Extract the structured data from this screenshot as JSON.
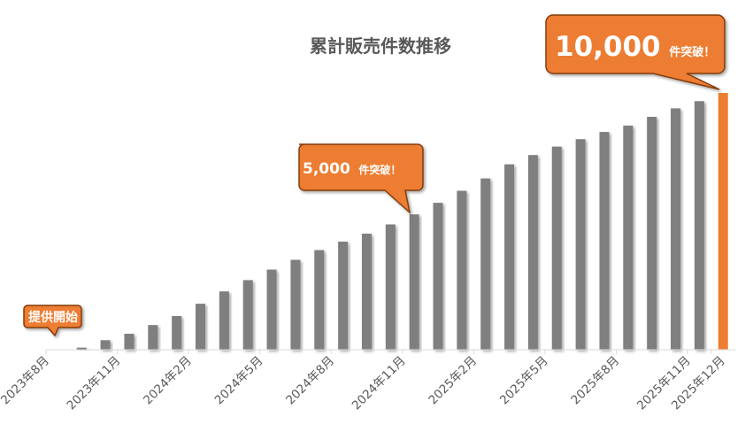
{
  "chart_data": {
    "type": "bar",
    "title": "累計販売件数推移",
    "xlabel": "",
    "ylabel": "",
    "ylim": [
      0,
      10000
    ],
    "grid": false,
    "categories": [
      "2023年8月",
      "2023年9月",
      "2023年10月",
      "2023年11月",
      "2023年12月",
      "2024年1月",
      "2024年2月",
      "2024年3月",
      "2024年4月",
      "2024年5月",
      "2024年6月",
      "2024年7月",
      "2024年8月",
      "2024年9月",
      "2024年10月",
      "2024年11月",
      "2024年12月",
      "2025年1月",
      "2025年2月",
      "2025年3月",
      "2025年4月",
      "2025年5月",
      "2025年6月",
      "2025年7月",
      "2025年8月",
      "2025年9月",
      "2025年10月",
      "2025年11月",
      "2025年12月"
    ],
    "tick_labels": [
      "2023年8月",
      "2023年11月",
      "2024年2月",
      "2024年5月",
      "2024年8月",
      "2024年11月",
      "2025年2月",
      "2025年5月",
      "2025年8月",
      "2025年11月",
      "2025年12月"
    ],
    "values": [
      0,
      80,
      370,
      620,
      960,
      1310,
      1790,
      2270,
      2710,
      3120,
      3500,
      3880,
      4210,
      4520,
      4880,
      5270,
      5720,
      6190,
      6670,
      7220,
      7580,
      7910,
      8200,
      8480,
      8730,
      9070,
      9400,
      9680,
      10000
    ],
    "bar_color": "#7f7f7f",
    "highlight_color": "#ed7d31",
    "highlight_index": 28,
    "annotations": [
      {
        "text": "提供開始",
        "category": "2023年8月"
      },
      {
        "text_value": "5,000",
        "text_suffix": "件突破！",
        "category": "2024年11月"
      },
      {
        "text_value": "10,000",
        "text_suffix": "件突破！",
        "category": "2025年12月"
      }
    ]
  }
}
